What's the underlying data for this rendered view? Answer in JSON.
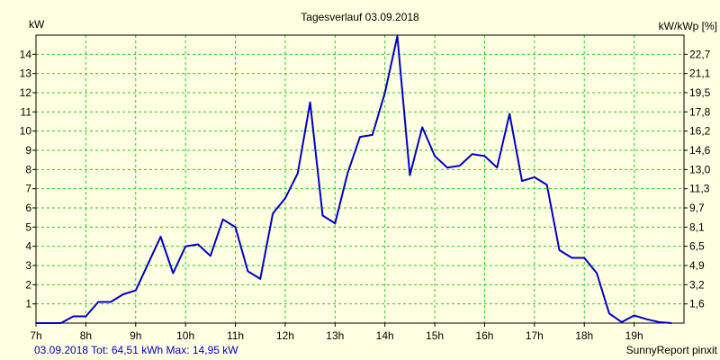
{
  "chart_data": {
    "type": "line",
    "title": "Tagesverlauf 03.09.2018",
    "ylabel_left": "kW",
    "ylabel_right": "kW/kWp [%]",
    "x_tick_labels": [
      "7h",
      "8h",
      "9h",
      "10h",
      "11h",
      "12h",
      "13h",
      "14h",
      "15h",
      "16h",
      "17h",
      "18h",
      "19h"
    ],
    "y_left_tick_labels": [
      "1",
      "2",
      "3",
      "4",
      "5",
      "6",
      "7",
      "8",
      "9",
      "10",
      "11",
      "12",
      "13",
      "14"
    ],
    "y_right_tick_labels": [
      "1,6",
      "3,2",
      "4,9",
      "6,5",
      "8,1",
      "9,7",
      "11,3",
      "13,0",
      "14,6",
      "16,2",
      "17,8",
      "19,5",
      "21,1",
      "22,7"
    ],
    "ylim": [
      0,
      15
    ],
    "xlim": [
      7,
      20
    ],
    "grid": true,
    "footer_left": "03.09.2018 Tot: 64,51 kWh Max: 14,95 kW",
    "footer_right": "SunnyReport pinxit",
    "series": [
      {
        "color": "#0000cc",
        "x": [
          7.0,
          7.25,
          7.5,
          7.75,
          8.0,
          8.25,
          8.5,
          8.75,
          9.0,
          9.25,
          9.5,
          9.75,
          10.0,
          10.25,
          10.5,
          10.75,
          11.0,
          11.25,
          11.5,
          11.75,
          12.0,
          12.25,
          12.5,
          12.75,
          13.0,
          13.25,
          13.5,
          13.75,
          14.0,
          14.25,
          14.5,
          14.75,
          15.0,
          15.25,
          15.5,
          15.75,
          16.0,
          16.25,
          16.5,
          16.75,
          17.0,
          17.25,
          17.5,
          17.75,
          18.0,
          18.25,
          18.5,
          18.75,
          19.0,
          19.25,
          19.5,
          19.75
        ],
        "values": [
          0,
          0,
          0,
          0.35,
          0.35,
          1.1,
          1.1,
          1.5,
          1.7,
          3.1,
          4.5,
          2.6,
          4.0,
          4.1,
          3.5,
          5.4,
          5.0,
          2.7,
          2.3,
          5.7,
          6.5,
          7.8,
          11.5,
          5.6,
          5.2,
          7.8,
          9.7,
          9.8,
          12.0,
          14.95,
          7.7,
          10.2,
          8.7,
          8.1,
          8.2,
          8.8,
          8.7,
          8.1,
          10.9,
          7.4,
          7.6,
          7.2,
          3.8,
          3.4,
          3.4,
          2.6,
          0.5,
          0.05,
          0.4,
          0.2,
          0.05,
          0
        ]
      }
    ]
  }
}
